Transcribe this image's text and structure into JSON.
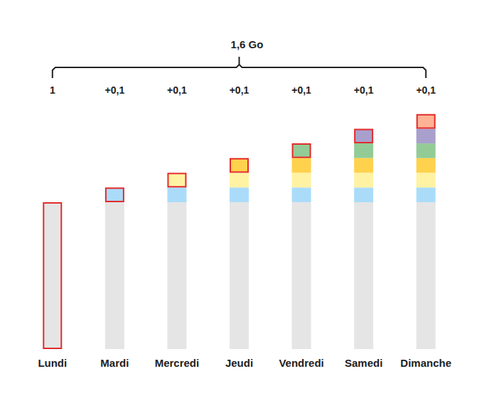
{
  "chart_data": {
    "type": "bar",
    "title": "1,6 Go",
    "categories": [
      "Lundi",
      "Mardi",
      "Mercredi",
      "Jeudi",
      "Vendredi",
      "Samedi",
      "Dimanche"
    ],
    "annotations": [
      "1",
      "+0,1",
      "+0,1",
      "+0,1",
      "+0,1",
      "+0,1",
      "+0,1"
    ],
    "stacked": true,
    "series": [
      {
        "color": "#e5e5e5",
        "values": [
          1,
          1,
          1,
          1,
          1,
          1,
          1
        ]
      },
      {
        "color": "#aadcfa",
        "values": [
          null,
          0.1,
          0.1,
          0.1,
          0.1,
          0.1,
          0.1
        ]
      },
      {
        "color": "#fff3a3",
        "values": [
          null,
          null,
          0.1,
          0.1,
          0.1,
          0.1,
          0.1
        ]
      },
      {
        "color": "#ffd24d",
        "values": [
          null,
          null,
          null,
          0.1,
          0.1,
          0.1,
          0.1
        ]
      },
      {
        "color": "#93cb97",
        "values": [
          null,
          null,
          null,
          null,
          0.1,
          0.1,
          0.1
        ]
      },
      {
        "color": "#a99fcc",
        "values": [
          null,
          null,
          null,
          null,
          null,
          0.1,
          0.1
        ]
      },
      {
        "color": "#ffb394",
        "values": [
          null,
          null,
          null,
          null,
          null,
          null,
          0.1
        ]
      }
    ],
    "ylim": [
      0,
      1.7
    ],
    "tick_labels": "x",
    "grid": false
  }
}
